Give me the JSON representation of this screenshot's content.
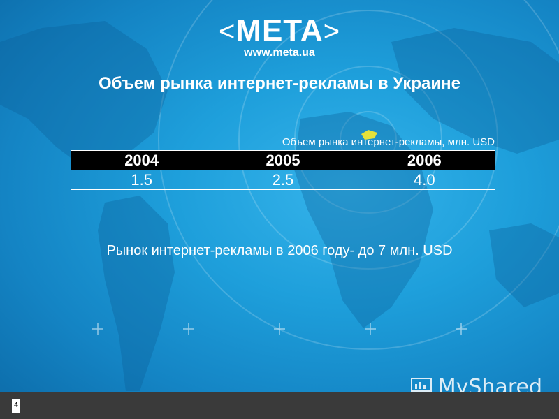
{
  "logo": {
    "word": "META",
    "url": "www.meta.ua"
  },
  "title": "Объем рынка интернет-рекламы в Украине",
  "caption": "Объем рынка интернет-рекламы, млн. USD",
  "table": {
    "headers": [
      "2004",
      "2005",
      "2006"
    ],
    "values": [
      "1.5",
      "2.5",
      "4.0"
    ]
  },
  "note": "Рынок интернет-рекламы в 2006 году- до 7 млн. USD",
  "footer": {
    "page_number": "4"
  },
  "watermark": {
    "text": "MyShared"
  },
  "colors": {
    "background": "#1e9fdb",
    "table_header": "#000000",
    "footer": "#3a3a3a"
  }
}
